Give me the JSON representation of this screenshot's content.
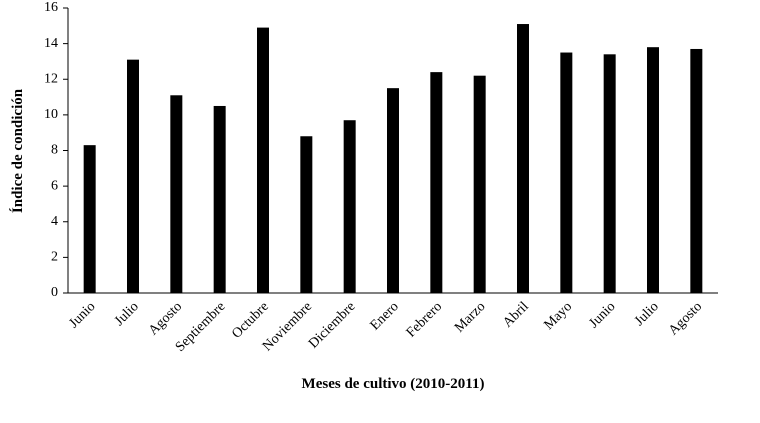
{
  "chart_data": {
    "type": "bar",
    "x_label": "Meses de cultivo (2010-2011)",
    "y_label": "Índice de condición",
    "categories": [
      "Junio",
      "Julio",
      "Agosto",
      "Septiembre",
      "Octubre",
      "Noviembre",
      "Diciembre",
      "Enero",
      "Febrero",
      "Marzo",
      "Abril",
      "Mayo",
      "Junio",
      "Julio",
      "Agosto"
    ],
    "values": [
      8.3,
      13.1,
      11.1,
      10.5,
      14.9,
      8.8,
      9.7,
      11.5,
      12.4,
      12.2,
      15.1,
      13.5,
      13.4,
      13.8,
      13.7
    ],
    "color": "#000000",
    "ylim": [
      0,
      16
    ],
    "yticks": [
      0,
      2,
      4,
      6,
      8,
      10,
      12,
      14,
      16
    ],
    "grid": false
  }
}
